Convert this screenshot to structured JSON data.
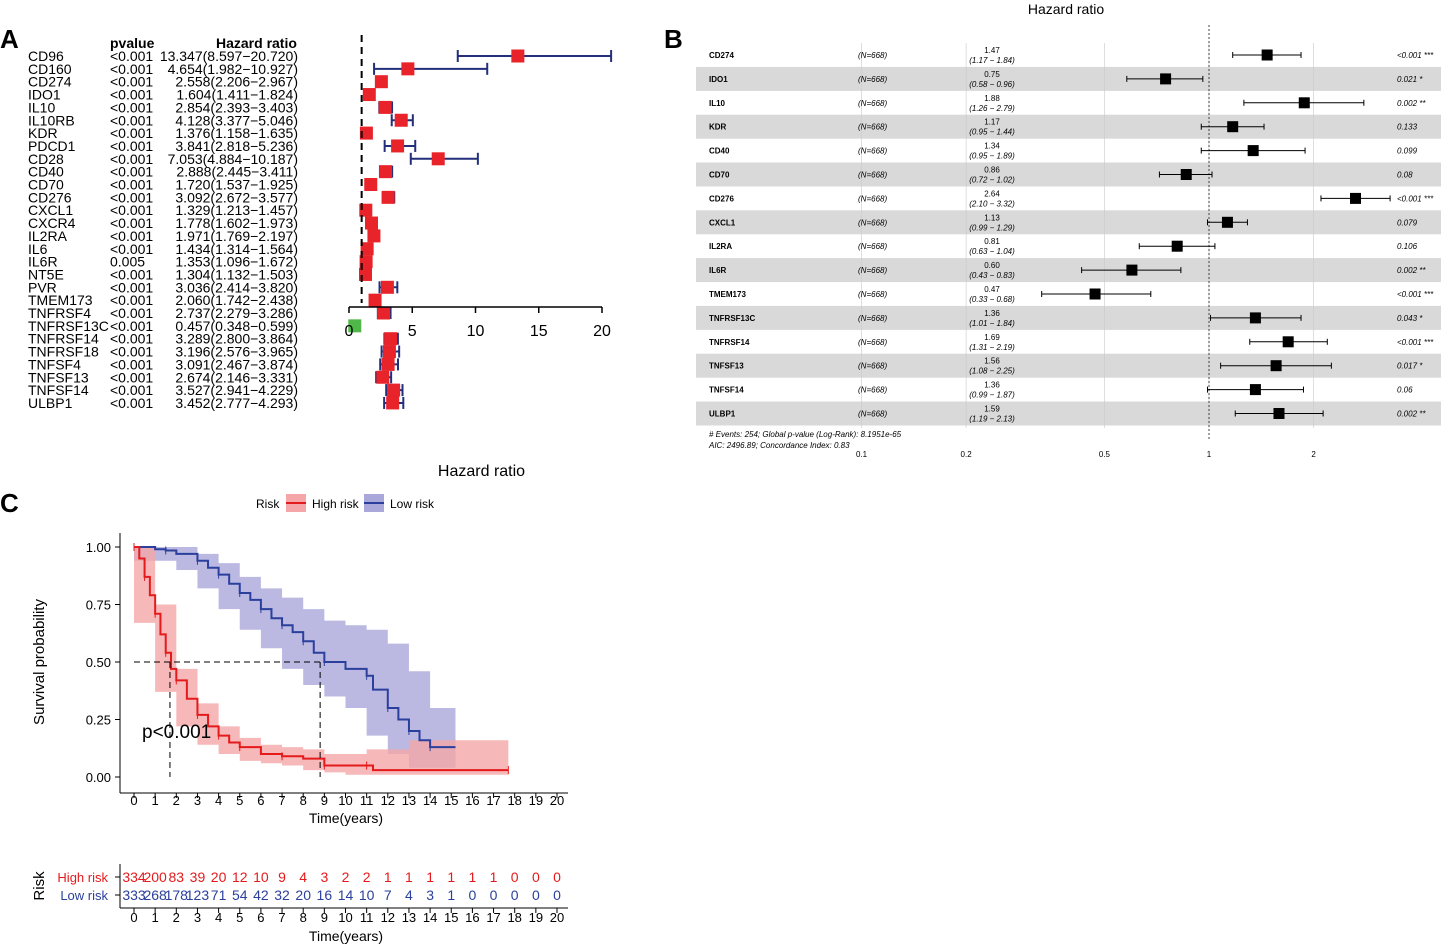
{
  "colors": {
    "red": "#e8232a",
    "green": "#4fb848",
    "navy": "#232f7a",
    "highRisk": "#e41a1c",
    "lowRisk": "#2b3f9c",
    "highFill": "#f4a6a8",
    "lowFill": "#aaa8db",
    "band": "#d9d9d9"
  },
  "panelA": {
    "label": "A",
    "header_pvalue": "pvalue",
    "header_hr": "Hazard ratio",
    "xlabel": "Hazard ratio",
    "ticks": [
      0,
      5,
      10,
      15,
      20
    ],
    "xlim": [
      0,
      20
    ],
    "reference_line": 1,
    "rows": [
      {
        "gene": "CD96",
        "p": "<0.001",
        "text": "13.347(8.597−20.720)",
        "hr": 13.347,
        "lo": 8.597,
        "hi": 20.72
      },
      {
        "gene": "CD160",
        "p": "<0.001",
        "text": "4.654(1.982−10.927)",
        "hr": 4.654,
        "lo": 1.982,
        "hi": 10.927
      },
      {
        "gene": "CD274",
        "p": "<0.001",
        "text": "2.558(2.206−2.967)",
        "hr": 2.558,
        "lo": 2.206,
        "hi": 2.967
      },
      {
        "gene": "IDO1",
        "p": "<0.001",
        "text": "1.604(1.411−1.824)",
        "hr": 1.604,
        "lo": 1.411,
        "hi": 1.824
      },
      {
        "gene": "IL10",
        "p": "<0.001",
        "text": "2.854(2.393−3.403)",
        "hr": 2.854,
        "lo": 2.393,
        "hi": 3.403
      },
      {
        "gene": "IL10RB",
        "p": "<0.001",
        "text": "4.128(3.377−5.046)",
        "hr": 4.128,
        "lo": 3.377,
        "hi": 5.046
      },
      {
        "gene": "KDR",
        "p": "<0.001",
        "text": "1.376(1.158−1.635)",
        "hr": 1.376,
        "lo": 1.158,
        "hi": 1.635
      },
      {
        "gene": "PDCD1",
        "p": "<0.001",
        "text": "3.841(2.818−5.236)",
        "hr": 3.841,
        "lo": 2.818,
        "hi": 5.236
      },
      {
        "gene": "CD28",
        "p": "<0.001",
        "text": "7.053(4.884−10.187)",
        "hr": 7.053,
        "lo": 4.884,
        "hi": 10.187
      },
      {
        "gene": "CD40",
        "p": "<0.001",
        "text": "2.888(2.445−3.411)",
        "hr": 2.888,
        "lo": 2.445,
        "hi": 3.411
      },
      {
        "gene": "CD70",
        "p": "<0.001",
        "text": "1.720(1.537−1.925)",
        "hr": 1.72,
        "lo": 1.537,
        "hi": 1.925
      },
      {
        "gene": "CD276",
        "p": "<0.001",
        "text": "3.092(2.672−3.577)",
        "hr": 3.092,
        "lo": 2.672,
        "hi": 3.577
      },
      {
        "gene": "CXCL1",
        "p": "<0.001",
        "text": "1.329(1.213−1.457)",
        "hr": 1.329,
        "lo": 1.213,
        "hi": 1.457
      },
      {
        "gene": "CXCR4",
        "p": "<0.001",
        "text": "1.778(1.602−1.973)",
        "hr": 1.778,
        "lo": 1.602,
        "hi": 1.973
      },
      {
        "gene": "IL2RA",
        "p": "<0.001",
        "text": "1.971(1.769−2.197)",
        "hr": 1.971,
        "lo": 1.769,
        "hi": 2.197
      },
      {
        "gene": "IL6",
        "p": "<0.001",
        "text": "1.434(1.314−1.564)",
        "hr": 1.434,
        "lo": 1.314,
        "hi": 1.564
      },
      {
        "gene": "IL6R",
        "p": "0.005",
        "text": "1.353(1.096−1.672)",
        "hr": 1.353,
        "lo": 1.096,
        "hi": 1.672
      },
      {
        "gene": "NT5E",
        "p": "<0.001",
        "text": "1.304(1.132−1.503)",
        "hr": 1.304,
        "lo": 1.132,
        "hi": 1.503
      },
      {
        "gene": "PVR",
        "p": "<0.001",
        "text": "3.036(2.414−3.820)",
        "hr": 3.036,
        "lo": 2.414,
        "hi": 3.82
      },
      {
        "gene": "TMEM173",
        "p": "<0.001",
        "text": "2.060(1.742−2.438)",
        "hr": 2.06,
        "lo": 1.742,
        "hi": 2.438
      },
      {
        "gene": "TNFRSF4",
        "p": "<0.001",
        "text": "2.737(2.279−3.286)",
        "hr": 2.737,
        "lo": 2.279,
        "hi": 3.286
      },
      {
        "gene": "TNFRSF13C",
        "p": "<0.001",
        "text": "0.457(0.348−0.599)",
        "hr": 0.457,
        "lo": 0.348,
        "hi": 0.599
      },
      {
        "gene": "TNFRSF14",
        "p": "<0.001",
        "text": "3.289(2.800−3.864)",
        "hr": 3.289,
        "lo": 2.8,
        "hi": 3.864
      },
      {
        "gene": "TNFRSF18",
        "p": "<0.001",
        "text": "3.196(2.576−3.965)",
        "hr": 3.196,
        "lo": 2.576,
        "hi": 3.965
      },
      {
        "gene": "TNFSF4",
        "p": "<0.001",
        "text": "3.091(2.467−3.874)",
        "hr": 3.091,
        "lo": 2.467,
        "hi": 3.874
      },
      {
        "gene": "TNFSF13",
        "p": "<0.001",
        "text": "2.674(2.146−3.331)",
        "hr": 2.674,
        "lo": 2.146,
        "hi": 3.331
      },
      {
        "gene": "TNFSF14",
        "p": "<0.001",
        "text": "3.527(2.941−4.229)",
        "hr": 3.527,
        "lo": 2.941,
        "hi": 4.229
      },
      {
        "gene": "ULBP1",
        "p": "<0.001",
        "text": "3.452(2.777−4.293)",
        "hr": 3.452,
        "lo": 2.777,
        "hi": 4.293
      }
    ]
  },
  "panelB": {
    "label": "B",
    "title": "Hazard ratio",
    "ticks": [
      "0.1",
      "0.2",
      "0.5",
      "1",
      "2"
    ],
    "tick_values": [
      0.1,
      0.2,
      0.5,
      1,
      2
    ],
    "footer1": "# Events: 254; Global p-value (Log-Rank): 8.1951e-65",
    "footer2": "AIC: 2496.89; Concordance Index: 0.83",
    "rows": [
      {
        "gene": "CD274",
        "n": "(N=668)",
        "hr_text": "1.47",
        "ci_text": "(1.17 − 1.84)",
        "p": "<0.001 ***",
        "hr": 1.47,
        "lo": 1.17,
        "hi": 1.84
      },
      {
        "gene": "IDO1",
        "n": "(N=668)",
        "hr_text": "0.75",
        "ci_text": "(0.58 − 0.96)",
        "p": "0.021 *",
        "hr": 0.75,
        "lo": 0.58,
        "hi": 0.96
      },
      {
        "gene": "IL10",
        "n": "(N=668)",
        "hr_text": "1.88",
        "ci_text": "(1.26 − 2.79)",
        "p": "0.002 **",
        "hr": 1.88,
        "lo": 1.26,
        "hi": 2.79
      },
      {
        "gene": "KDR",
        "n": "(N=668)",
        "hr_text": "1.17",
        "ci_text": "(0.95 − 1.44)",
        "p": "0.133",
        "hr": 1.17,
        "lo": 0.95,
        "hi": 1.44
      },
      {
        "gene": "CD40",
        "n": "(N=668)",
        "hr_text": "1.34",
        "ci_text": "(0.95 − 1.89)",
        "p": "0.099",
        "hr": 1.34,
        "lo": 0.95,
        "hi": 1.89
      },
      {
        "gene": "CD70",
        "n": "(N=668)",
        "hr_text": "0.86",
        "ci_text": "(0.72 − 1.02)",
        "p": "0.08",
        "hr": 0.86,
        "lo": 0.72,
        "hi": 1.02
      },
      {
        "gene": "CD276",
        "n": "(N=668)",
        "hr_text": "2.64",
        "ci_text": "(2.10 − 3.32)",
        "p": "<0.001 ***",
        "hr": 2.64,
        "lo": 2.1,
        "hi": 3.32
      },
      {
        "gene": "CXCL1",
        "n": "(N=668)",
        "hr_text": "1.13",
        "ci_text": "(0.99 − 1.29)",
        "p": "0.079",
        "hr": 1.13,
        "lo": 0.99,
        "hi": 1.29
      },
      {
        "gene": "IL2RA",
        "n": "(N=668)",
        "hr_text": "0.81",
        "ci_text": "(0.63 − 1.04)",
        "p": "0.106",
        "hr": 0.81,
        "lo": 0.63,
        "hi": 1.04
      },
      {
        "gene": "IL6R",
        "n": "(N=668)",
        "hr_text": "0.60",
        "ci_text": "(0.43 − 0.83)",
        "p": "0.002 **",
        "hr": 0.6,
        "lo": 0.43,
        "hi": 0.83
      },
      {
        "gene": "TMEM173",
        "n": "(N=668)",
        "hr_text": "0.47",
        "ci_text": "(0.33 − 0.68)",
        "p": "<0.001 ***",
        "hr": 0.47,
        "lo": 0.33,
        "hi": 0.68
      },
      {
        "gene": "TNFRSF13C",
        "n": "(N=668)",
        "hr_text": "1.36",
        "ci_text": "(1.01 − 1.84)",
        "p": "0.043 *",
        "hr": 1.36,
        "lo": 1.01,
        "hi": 1.84
      },
      {
        "gene": "TNFRSF14",
        "n": "(N=668)",
        "hr_text": "1.69",
        "ci_text": "(1.31 − 2.19)",
        "p": "<0.001 ***",
        "hr": 1.69,
        "lo": 1.31,
        "hi": 2.19
      },
      {
        "gene": "TNFSF13",
        "n": "(N=668)",
        "hr_text": "1.56",
        "ci_text": "(1.08 − 2.25)",
        "p": "0.017 *",
        "hr": 1.56,
        "lo": 1.08,
        "hi": 2.25
      },
      {
        "gene": "TNFSF14",
        "n": "(N=668)",
        "hr_text": "1.36",
        "ci_text": "(0.99 − 1.87)",
        "p": "0.06",
        "hr": 1.36,
        "lo": 0.99,
        "hi": 1.87
      },
      {
        "gene": "ULBP1",
        "n": "(N=668)",
        "hr_text": "1.59",
        "ci_text": "(1.19 − 2.13)",
        "p": "0.002 **",
        "hr": 1.59,
        "lo": 1.19,
        "hi": 2.13
      }
    ]
  },
  "panelC": {
    "label": "C",
    "legend_title": "Risk",
    "legend_high": "High risk",
    "legend_low": "Low risk",
    "ylabel": "Survival probability",
    "xlabel": "Time(years)",
    "yticks": [
      "0.00",
      "0.25",
      "0.50",
      "0.75",
      "1.00"
    ],
    "ytick_values": [
      0,
      0.25,
      0.5,
      0.75,
      1
    ],
    "xticks": [
      0,
      1,
      2,
      3,
      4,
      5,
      6,
      7,
      8,
      9,
      10,
      11,
      12,
      13,
      14,
      15,
      16,
      17,
      18,
      19,
      20
    ],
    "pvalue_text": "p<0.001",
    "median_high": 1.7,
    "median_low": 8.8,
    "high_curve": [
      [
        0,
        1
      ],
      [
        0.25,
        0.95
      ],
      [
        0.5,
        0.87
      ],
      [
        0.75,
        0.79
      ],
      [
        1,
        0.71
      ],
      [
        1.25,
        0.62
      ],
      [
        1.5,
        0.54
      ],
      [
        1.75,
        0.47
      ],
      [
        2,
        0.42
      ],
      [
        2.5,
        0.34
      ],
      [
        3,
        0.27
      ],
      [
        3.5,
        0.22
      ],
      [
        4,
        0.18
      ],
      [
        4.5,
        0.15
      ],
      [
        5,
        0.13
      ],
      [
        6,
        0.1
      ],
      [
        7,
        0.09
      ],
      [
        8,
        0.08
      ],
      [
        9,
        0.05
      ],
      [
        10,
        0.05
      ],
      [
        11,
        0.05
      ],
      [
        11.3,
        0.03
      ],
      [
        17.7,
        0.03
      ]
    ],
    "high_upper": [
      [
        0,
        1
      ],
      [
        1,
        0.75
      ],
      [
        2,
        0.47
      ],
      [
        3,
        0.32
      ],
      [
        4,
        0.22
      ],
      [
        5,
        0.17
      ],
      [
        6,
        0.14
      ],
      [
        7,
        0.13
      ],
      [
        8,
        0.12
      ],
      [
        9,
        0.1
      ],
      [
        10,
        0.1
      ],
      [
        11,
        0.12
      ],
      [
        13,
        0.16
      ],
      [
        15,
        0.16
      ],
      [
        17.7,
        0.16
      ]
    ],
    "high_lower": [
      [
        0,
        1
      ],
      [
        1,
        0.67
      ],
      [
        2,
        0.37
      ],
      [
        3,
        0.22
      ],
      [
        4,
        0.14
      ],
      [
        5,
        0.1
      ],
      [
        6,
        0.07
      ],
      [
        7,
        0.06
      ],
      [
        8,
        0.05
      ],
      [
        9,
        0.03
      ],
      [
        10,
        0.02
      ],
      [
        11,
        0.01
      ],
      [
        17.7,
        0.01
      ]
    ],
    "low_curve": [
      [
        0,
        1
      ],
      [
        1,
        0.99
      ],
      [
        1.5,
        0.985
      ],
      [
        2,
        0.97
      ],
      [
        3,
        0.94
      ],
      [
        3.5,
        0.91
      ],
      [
        4,
        0.88
      ],
      [
        4.5,
        0.84
      ],
      [
        5,
        0.8
      ],
      [
        5.5,
        0.77
      ],
      [
        6,
        0.73
      ],
      [
        6.5,
        0.69
      ],
      [
        7,
        0.66
      ],
      [
        7.5,
        0.63
      ],
      [
        8,
        0.59
      ],
      [
        8.5,
        0.54
      ],
      [
        9,
        0.5
      ],
      [
        10,
        0.47
      ],
      [
        11,
        0.44
      ],
      [
        11.3,
        0.38
      ],
      [
        12,
        0.3
      ],
      [
        12.5,
        0.25
      ],
      [
        13,
        0.2
      ],
      [
        13.5,
        0.16
      ],
      [
        14,
        0.13
      ],
      [
        15.2,
        0.13
      ]
    ],
    "low_upper": [
      [
        0,
        1
      ],
      [
        2,
        1
      ],
      [
        3,
        0.97
      ],
      [
        4,
        0.93
      ],
      [
        5,
        0.87
      ],
      [
        6,
        0.82
      ],
      [
        7,
        0.78
      ],
      [
        8,
        0.73
      ],
      [
        9,
        0.68
      ],
      [
        10,
        0.66
      ],
      [
        11,
        0.64
      ],
      [
        12,
        0.58
      ],
      [
        13,
        0.46
      ],
      [
        14,
        0.3
      ],
      [
        15.2,
        0.3
      ]
    ],
    "low_lower": [
      [
        0,
        1
      ],
      [
        2,
        0.94
      ],
      [
        3,
        0.9
      ],
      [
        4,
        0.82
      ],
      [
        5,
        0.73
      ],
      [
        6,
        0.64
      ],
      [
        7,
        0.56
      ],
      [
        8,
        0.47
      ],
      [
        9,
        0.4
      ],
      [
        10,
        0.35
      ],
      [
        11,
        0.3
      ],
      [
        12,
        0.18
      ],
      [
        13,
        0.1
      ],
      [
        14,
        0.04
      ],
      [
        15.2,
        0.04
      ]
    ],
    "risk_table": {
      "title": "Risk",
      "high_label": "High risk",
      "low_label": "Low risk",
      "xlabel": "Time(years)",
      "high_counts": [
        "334",
        "200",
        "83",
        "39",
        "20",
        "12",
        "10",
        "9",
        "4",
        "3",
        "2",
        "2",
        "1",
        "1",
        "1",
        "1",
        "1",
        "1",
        "0",
        "0",
        "0"
      ],
      "low_counts": [
        "333",
        "268",
        "178",
        "123",
        "71",
        "54",
        "42",
        "32",
        "20",
        "16",
        "14",
        "10",
        "7",
        "4",
        "3",
        "1",
        "0",
        "0",
        "0",
        "0",
        "0"
      ]
    }
  }
}
